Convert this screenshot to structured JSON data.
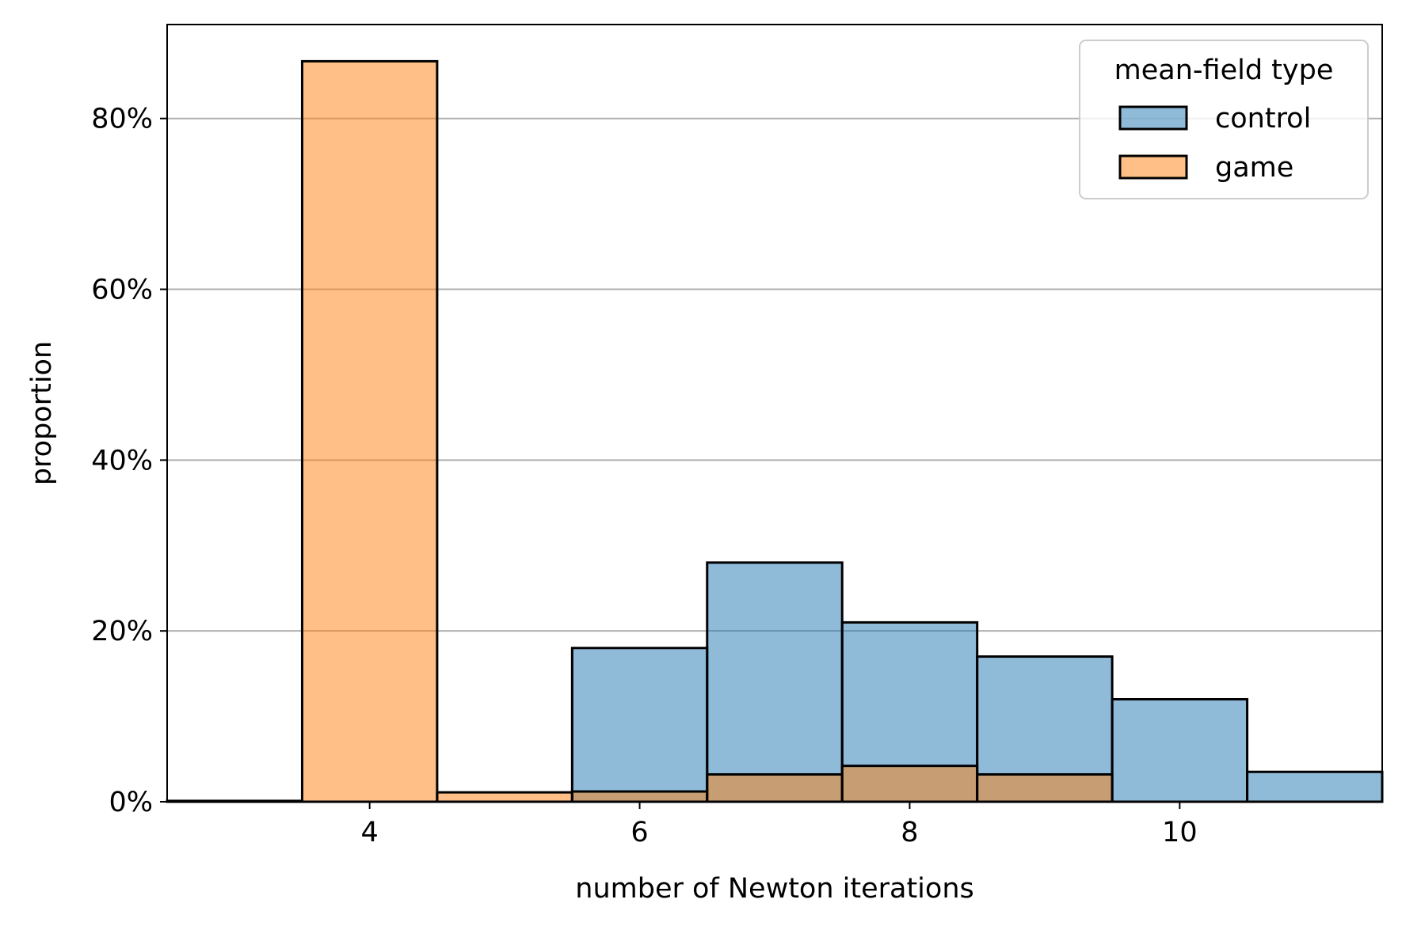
{
  "chart_data": {
    "type": "bar",
    "title": "",
    "xlabel": "number of Newton iterations",
    "ylabel": "proportion",
    "xlim": [
      2.5,
      11.5
    ],
    "ylim": [
      0,
      0.91
    ],
    "xticks": [
      {
        "value": 4,
        "label": "4"
      },
      {
        "value": 6,
        "label": "6"
      },
      {
        "value": 8,
        "label": "8"
      },
      {
        "value": 10,
        "label": "10"
      }
    ],
    "yticks": [
      {
        "value": 0,
        "label": "0%"
      },
      {
        "value": 0.2,
        "label": "20%"
      },
      {
        "value": 0.4,
        "label": "40%"
      },
      {
        "value": 0.6,
        "label": "60%"
      },
      {
        "value": 0.8,
        "label": "80%"
      }
    ],
    "grid": {
      "y": true,
      "x": false
    },
    "legend": {
      "title": "mean-field type",
      "placement": "upper right"
    },
    "bins": [
      3,
      4,
      5,
      6,
      7,
      8,
      9,
      10,
      11
    ],
    "series": [
      {
        "name": "control",
        "color": "#1f77b4",
        "opacity": 0.5,
        "values": [
          0,
          0,
          0,
          0.18,
          0.28,
          0.21,
          0.17,
          0.12,
          0.035
        ]
      },
      {
        "name": "game",
        "color": "#ff7f0e",
        "opacity": 0.5,
        "values": [
          0.001,
          0.867,
          0.011,
          0.012,
          0.032,
          0.042,
          0.032,
          0,
          0
        ]
      }
    ]
  }
}
